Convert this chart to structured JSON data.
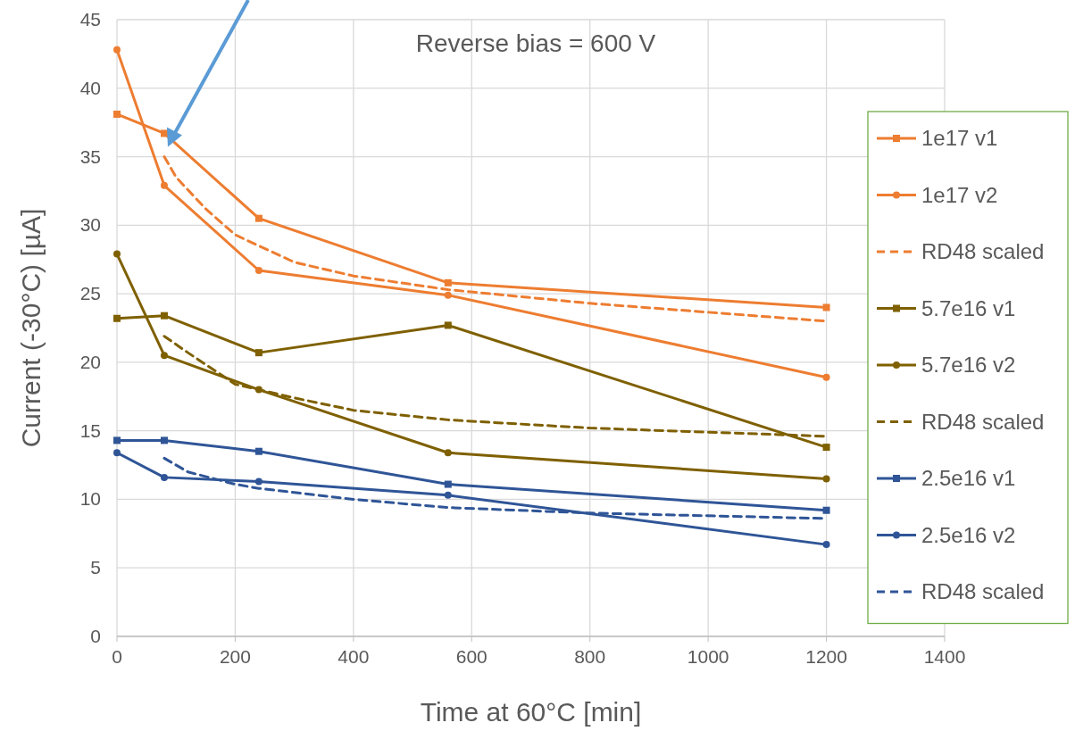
{
  "chart_data": {
    "type": "line",
    "xlabel": "Time at 60°C [min]",
    "ylabel": "Current (-30°C) [µA]",
    "annotations": [
      "Reverse bias = 600 V"
    ],
    "xlim": [
      0,
      1400
    ],
    "xticks": [
      0,
      200,
      400,
      600,
      800,
      1000,
      1200,
      1400
    ],
    "ylim": [
      0,
      45
    ],
    "yticks": [
      0,
      5,
      10,
      15,
      20,
      25,
      30,
      35,
      40,
      45
    ],
    "grid": true,
    "legend": "right",
    "series": [
      {
        "name": "1e17 v1",
        "color": "#ed7d31",
        "marker": "square",
        "line_style": "solid",
        "x": [
          0,
          80,
          240,
          560,
          1200
        ],
        "values": [
          38.1,
          36.7,
          30.5,
          25.8,
          24.0
        ]
      },
      {
        "name": "1e17 v2",
        "color": "#ed7d31",
        "marker": "circle",
        "line_style": "solid",
        "x": [
          0,
          80,
          240,
          560,
          1200
        ],
        "values": [
          42.8,
          32.9,
          26.7,
          24.9,
          18.9
        ]
      },
      {
        "name": "RD48 scaled",
        "color": "#ed7d31",
        "marker": "none",
        "line_style": "dashed",
        "x": [
          80,
          100,
          150,
          200,
          240,
          300,
          400,
          560,
          800,
          1200
        ],
        "values": [
          35.0,
          33.5,
          31.2,
          29.3,
          28.5,
          27.3,
          26.3,
          25.3,
          24.3,
          23.0
        ]
      },
      {
        "name": "5.7e16 v1",
        "color": "#7f6000",
        "marker": "square",
        "line_style": "solid",
        "x": [
          0,
          80,
          240,
          560,
          1200
        ],
        "values": [
          23.2,
          23.4,
          20.7,
          22.7,
          13.8
        ]
      },
      {
        "name": "5.7e16 v2",
        "color": "#7f6000",
        "marker": "circle",
        "line_style": "solid",
        "x": [
          0,
          80,
          240,
          560,
          1200
        ],
        "values": [
          27.9,
          20.5,
          18.0,
          13.4,
          11.5
        ]
      },
      {
        "name": "RD48 scaled",
        "color": "#7f6000",
        "marker": "none",
        "line_style": "dashed",
        "x": [
          80,
          120,
          200,
          240,
          300,
          400,
          560,
          800,
          1200
        ],
        "values": [
          21.9,
          20.7,
          18.4,
          18.0,
          17.4,
          16.5,
          15.8,
          15.2,
          14.6
        ]
      },
      {
        "name": "2.5e16 v1",
        "color": "#2f5597",
        "marker": "square",
        "line_style": "solid",
        "x": [
          0,
          80,
          240,
          560,
          1200
        ],
        "values": [
          14.3,
          14.3,
          13.5,
          11.1,
          9.2
        ]
      },
      {
        "name": "2.5e16 v2",
        "color": "#2f5597",
        "marker": "circle",
        "line_style": "solid",
        "x": [
          0,
          80,
          240,
          560,
          1200
        ],
        "values": [
          13.4,
          11.6,
          11.3,
          10.3,
          6.7
        ]
      },
      {
        "name": "RD48 scaled",
        "color": "#2f5597",
        "marker": "none",
        "line_style": "dashed",
        "x": [
          80,
          120,
          200,
          240,
          300,
          400,
          560,
          800,
          1200
        ],
        "values": [
          13.0,
          12.0,
          11.1,
          10.8,
          10.5,
          10.0,
          9.4,
          9.0,
          8.6
        ]
      }
    ]
  }
}
